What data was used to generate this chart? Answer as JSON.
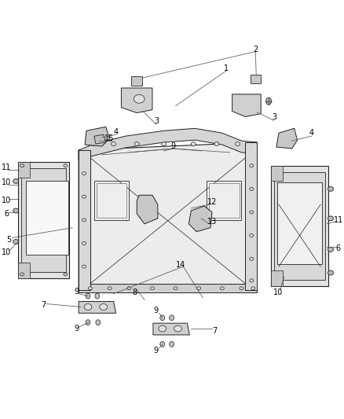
{
  "bg_color": "#ffffff",
  "fig_width": 4.38,
  "fig_height": 5.33,
  "dpi": 100,
  "line_color": "#555555",
  "text_color": "#000000",
  "dark": "#222222",
  "face_light": "#e8e8e8",
  "face_mid": "#d8d8d8",
  "face_dark": "#c8c8c8"
}
